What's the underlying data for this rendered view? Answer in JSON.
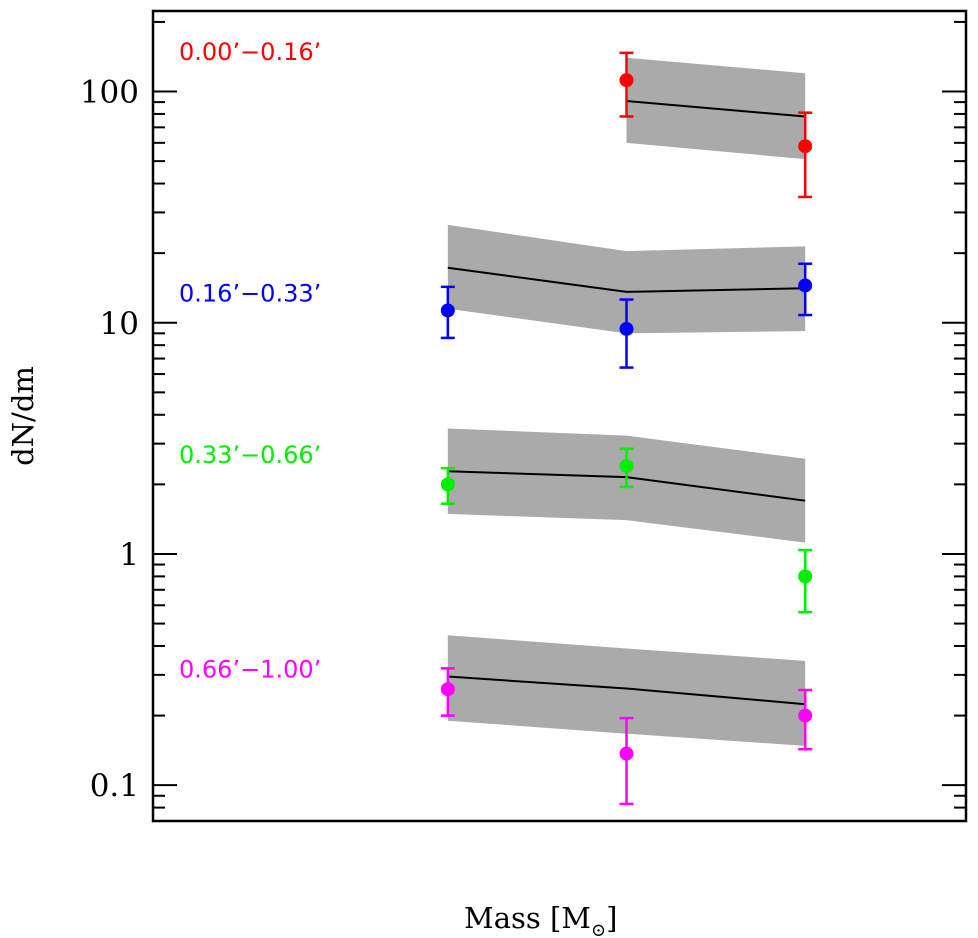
{
  "chart_data": {
    "type": "scatter",
    "title": "",
    "xlabel": "Mass [M",
    "xlabel_subscript": "⊙",
    "xlabel_close": "]",
    "ylabel": "dN/dm",
    "yscale": "log",
    "ylim": [
      0.07,
      223
    ],
    "y_ticks": [
      {
        "value": 0.1,
        "label": "0.1"
      },
      {
        "value": 1,
        "label": "1"
      },
      {
        "value": 10,
        "label": "10"
      },
      {
        "value": 100,
        "label": "100"
      }
    ],
    "x_ticks": [],
    "x": [
      1,
      2,
      3
    ],
    "xlim": [
      -0.65,
      3.9
    ],
    "grid": false,
    "legend": "none",
    "model_band_color": "#aaaaaa",
    "model_line_color": "#000000",
    "series": [
      {
        "name": "0.00’−0.16’",
        "color": "#ff0000",
        "points": [
          {
            "x": 2,
            "y": 112,
            "err_low": 78,
            "err_high": 147
          },
          {
            "x": 3,
            "y": 58,
            "err_low": 35,
            "err_high": 81
          }
        ],
        "model": [
          {
            "x": 2,
            "y": 91,
            "low": 60,
            "high": 140
          },
          {
            "x": 3,
            "y": 78,
            "low": 51,
            "high": 120
          }
        ],
        "label_y": 150
      },
      {
        "name": "0.16’−0.33’",
        "color": "#0000ff",
        "points": [
          {
            "x": 1,
            "y": 11.3,
            "err_low": 8.6,
            "err_high": 14.3
          },
          {
            "x": 2,
            "y": 9.4,
            "err_low": 6.4,
            "err_high": 12.6
          },
          {
            "x": 3,
            "y": 14.5,
            "err_low": 10.8,
            "err_high": 18.0
          }
        ],
        "model": [
          {
            "x": 1,
            "y": 17.3,
            "low": 11.5,
            "high": 26.5
          },
          {
            "x": 2,
            "y": 13.6,
            "low": 9.0,
            "high": 20.4
          },
          {
            "x": 3,
            "y": 14.1,
            "low": 9.2,
            "high": 21.4
          }
        ],
        "label_y": 13.5
      },
      {
        "name": "0.33’−0.66’",
        "color": "#00ee00",
        "points": [
          {
            "x": 1,
            "y": 2.0,
            "err_low": 1.65,
            "err_high": 2.35
          },
          {
            "x": 2,
            "y": 2.4,
            "err_low": 1.95,
            "err_high": 2.85
          },
          {
            "x": 3,
            "y": 0.8,
            "err_low": 0.56,
            "err_high": 1.04
          }
        ],
        "model": [
          {
            "x": 1,
            "y": 2.28,
            "low": 1.49,
            "high": 3.49
          },
          {
            "x": 2,
            "y": 2.15,
            "low": 1.4,
            "high": 3.25
          },
          {
            "x": 3,
            "y": 1.7,
            "low": 1.12,
            "high": 2.58
          }
        ],
        "label_y": 2.7
      },
      {
        "name": "0.66’−1.00’",
        "color": "#ff00ff",
        "points": [
          {
            "x": 1,
            "y": 0.26,
            "err_low": 0.2,
            "err_high": 0.32
          },
          {
            "x": 2,
            "y": 0.137,
            "err_low": 0.083,
            "err_high": 0.195
          },
          {
            "x": 3,
            "y": 0.2,
            "err_low": 0.143,
            "err_high": 0.258
          }
        ],
        "model": [
          {
            "x": 1,
            "y": 0.295,
            "low": 0.19,
            "high": 0.445
          },
          {
            "x": 2,
            "y": 0.262,
            "low": 0.167,
            "high": 0.39
          },
          {
            "x": 3,
            "y": 0.224,
            "low": 0.148,
            "high": 0.345
          }
        ],
        "label_y": 0.32
      }
    ]
  }
}
